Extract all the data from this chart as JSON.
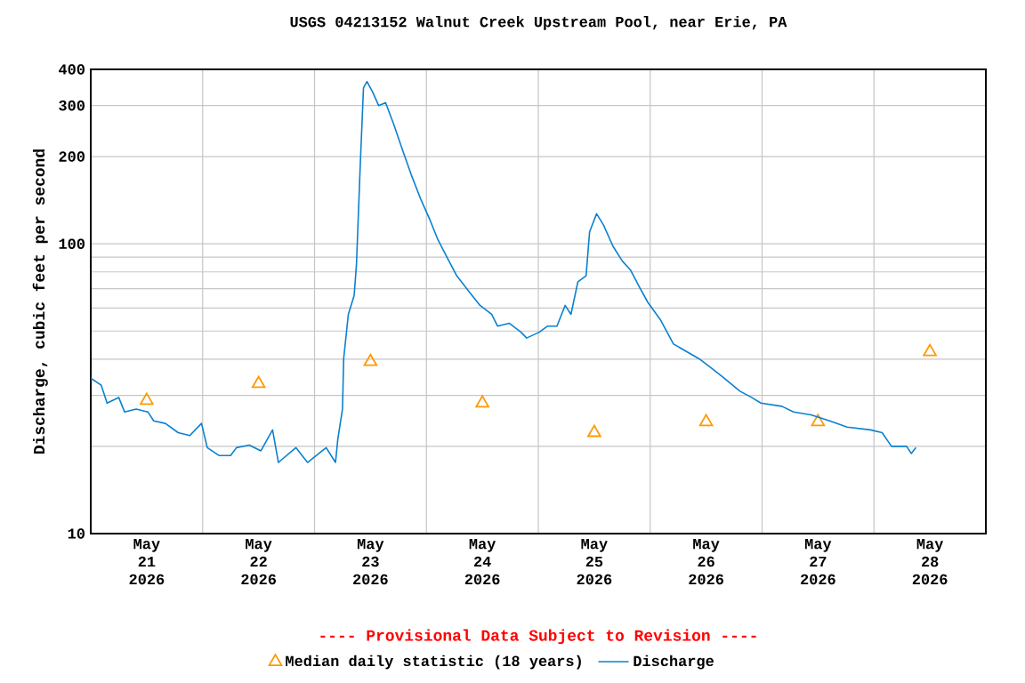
{
  "chart_data": {
    "type": "line",
    "title": "USGS 04213152 Walnut Creek Upstream Pool, near Erie, PA",
    "ylabel": "Discharge, cubic feet per second",
    "annotations": [
      "---- Provisional Data Subject to Revision ----"
    ],
    "log": "y",
    "grid": true,
    "legend": "bottom",
    "xlim": [
      "2026-05-21T00:00",
      "2026-05-29T00:00"
    ],
    "xticks": [
      {
        "value": "2026-05-21T12:00",
        "label": "May 21 2026"
      },
      {
        "value": "2026-05-22T00:00",
        "label": null
      },
      {
        "value": "2026-05-22T12:00",
        "label": "May 22 2026"
      },
      {
        "value": "2026-05-23T00:00",
        "label": null
      },
      {
        "value": "2026-05-23T12:00",
        "label": "May 23 2026"
      },
      {
        "value": "2026-05-24T00:00",
        "label": null
      },
      {
        "value": "2026-05-24T12:00",
        "label": "May 24 2026"
      },
      {
        "value": "2026-05-25T00:00",
        "label": null
      },
      {
        "value": "2026-05-25T12:00",
        "label": "May 25 2026"
      },
      {
        "value": "2026-05-26T00:00",
        "label": null
      },
      {
        "value": "2026-05-26T12:00",
        "label": "May 26 2026"
      },
      {
        "value": "2026-05-27T00:00",
        "label": null
      },
      {
        "value": "2026-05-27T12:00",
        "label": "May 27 2026"
      },
      {
        "value": "2026-05-28T00:00",
        "label": null
      },
      {
        "value": "2026-05-28T12:00",
        "label": "May 28 2026"
      }
    ],
    "ylim": [
      10,
      400
    ],
    "yticks": [
      10,
      {
        "value": 20,
        "label": null
      },
      {
        "value": 30,
        "label": null
      },
      {
        "value": 40,
        "label": null
      },
      {
        "value": 50,
        "label": null
      },
      {
        "value": 60,
        "label": null
      },
      {
        "value": 70,
        "label": null
      },
      {
        "value": 80,
        "label": null
      },
      {
        "value": 90,
        "label": null
      },
      100,
      200,
      300,
      400
    ],
    "series": [
      {
        "name": "Median daily statistic (18 years)",
        "type": "scatter",
        "marker": "triangle",
        "color": "#ff9900",
        "x": [
          "2026-05-21T12:00",
          "2026-05-22T12:00",
          "2026-05-23T12:00",
          "2026-05-24T12:00",
          "2026-05-25T12:00",
          "2026-05-26T12:00",
          "2026-05-27T12:00",
          "2026-05-28T12:00"
        ],
        "values": [
          28.8,
          32.9,
          39.2,
          28.2,
          22.3,
          24.3,
          24.3,
          42.4
        ]
      },
      {
        "name": "Discharge",
        "color": "#0a80d0",
        "x": [
          "2026-05-21T00:00",
          "2026-05-21T02:15",
          "2026-05-21T03:30",
          "2026-05-21T06:00",
          "2026-05-21T07:15",
          "2026-05-21T09:45",
          "2026-05-21T12:15",
          "2026-05-21T13:30",
          "2026-05-21T16:00",
          "2026-05-21T18:45",
          "2026-05-21T21:15",
          "2026-05-21T23:45",
          "2026-05-22T01:00",
          "2026-05-22T03:30",
          "2026-05-22T06:00",
          "2026-05-22T07:15",
          "2026-05-22T10:00",
          "2026-05-22T12:30",
          "2026-05-22T15:00",
          "2026-05-22T16:15",
          "2026-05-22T20:00",
          "2026-05-22T22:30",
          "2026-05-23T02:30",
          "2026-05-23T04:30",
          "2026-05-23T05:00",
          "2026-05-23T06:00",
          "2026-05-23T06:15",
          "2026-05-23T07:15",
          "2026-05-23T08:30",
          "2026-05-23T09:00",
          "2026-05-23T09:45",
          "2026-05-23T10:30",
          "2026-05-23T11:15",
          "2026-05-23T12:30",
          "2026-05-23T13:45",
          "2026-05-23T15:15",
          "2026-05-23T17:00",
          "2026-05-23T19:00",
          "2026-05-23T20:45",
          "2026-05-23T22:45",
          "2026-05-24T00:45",
          "2026-05-24T02:30",
          "2026-05-24T04:30",
          "2026-05-24T06:30",
          "2026-05-24T09:00",
          "2026-05-24T11:30",
          "2026-05-24T14:00",
          "2026-05-24T15:15",
          "2026-05-24T17:45",
          "2026-05-24T20:15",
          "2026-05-24T21:30",
          "2026-05-25T00:15",
          "2026-05-25T02:00",
          "2026-05-25T04:00",
          "2026-05-25T05:45",
          "2026-05-25T07:00",
          "2026-05-25T08:30",
          "2026-05-25T10:15",
          "2026-05-25T11:00",
          "2026-05-25T12:30",
          "2026-05-25T14:00",
          "2026-05-25T16:00",
          "2026-05-25T18:00",
          "2026-05-25T19:45",
          "2026-05-25T21:45",
          "2026-05-25T23:30",
          "2026-05-26T02:15",
          "2026-05-26T05:00",
          "2026-05-26T10:30",
          "2026-05-26T13:00",
          "2026-05-26T15:30",
          "2026-05-26T19:15",
          "2026-05-26T21:45",
          "2026-05-26T23:45",
          "2026-05-27T04:15",
          "2026-05-27T06:45",
          "2026-05-27T10:30",
          "2026-05-27T14:30",
          "2026-05-27T18:15",
          "2026-05-27T23:15",
          "2026-05-28T01:45",
          "2026-05-28T03:45",
          "2026-05-28T07:00",
          "2026-05-28T08:00",
          "2026-05-28T09:00"
        ],
        "values": [
          34.4,
          32.5,
          28.2,
          29.5,
          26.3,
          26.9,
          26.3,
          24.5,
          24.0,
          22.3,
          21.8,
          24.0,
          19.8,
          18.6,
          18.6,
          19.8,
          20.2,
          19.3,
          22.8,
          17.6,
          19.8,
          17.6,
          19.8,
          17.6,
          21.2,
          26.9,
          40.1,
          57.1,
          66.3,
          85.2,
          177,
          345,
          363,
          333,
          300,
          307,
          258,
          208,
          173,
          143,
          121,
          103,
          89.3,
          77.6,
          68.9,
          61.3,
          57.1,
          52.0,
          53.2,
          49.6,
          47.3,
          49.6,
          52.0,
          52.0,
          61.3,
          57.1,
          74.0,
          77.6,
          110,
          127,
          116,
          98.2,
          87.3,
          81.3,
          70.6,
          62.8,
          54.5,
          45.1,
          40.1,
          37.4,
          34.8,
          31.0,
          29.5,
          28.2,
          27.5,
          26.3,
          25.7,
          24.5,
          23.3,
          22.8,
          22.3,
          20.0,
          20.0,
          18.9,
          19.8
        ]
      }
    ]
  }
}
